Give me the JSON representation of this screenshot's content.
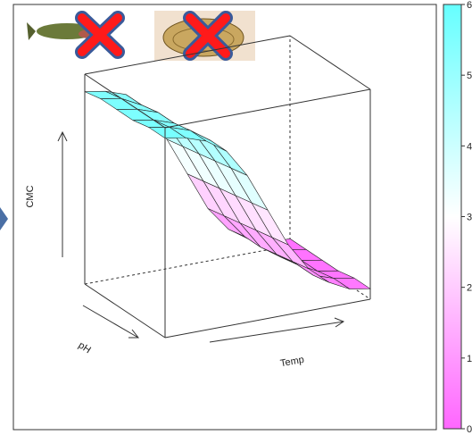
{
  "chart_data": {
    "type": "surface",
    "x_label": "Temp",
    "y_label": "pH",
    "z_label": "CMC",
    "z": [
      [
        5.7,
        5.6,
        5.4,
        5.0,
        4.2,
        3.1,
        2.0,
        1.2,
        0.7,
        0.4,
        0.3
      ],
      [
        5.7,
        5.6,
        5.4,
        5.0,
        4.1,
        3.0,
        1.9,
        1.1,
        0.6,
        0.4,
        0.3
      ],
      [
        5.6,
        5.5,
        5.3,
        4.9,
        4.0,
        2.9,
        1.8,
        1.0,
        0.6,
        0.3,
        0.2
      ],
      [
        5.6,
        5.5,
        5.3,
        4.8,
        3.9,
        2.8,
        1.7,
        0.9,
        0.5,
        0.3,
        0.2
      ],
      [
        5.6,
        5.5,
        5.2,
        4.7,
        3.8,
        2.7,
        1.6,
        0.9,
        0.5,
        0.3,
        0.2
      ],
      [
        5.5,
        5.4,
        5.2,
        4.7,
        3.7,
        2.6,
        1.5,
        0.8,
        0.4,
        0.2,
        0.2
      ]
    ],
    "zlim": [
      0,
      6
    ],
    "colorbar": {
      "ticks": [
        0,
        1,
        2,
        3,
        4,
        5,
        6
      ],
      "colors": [
        "#ff66ff",
        "#ffffff",
        "#66ffff"
      ]
    }
  }
}
